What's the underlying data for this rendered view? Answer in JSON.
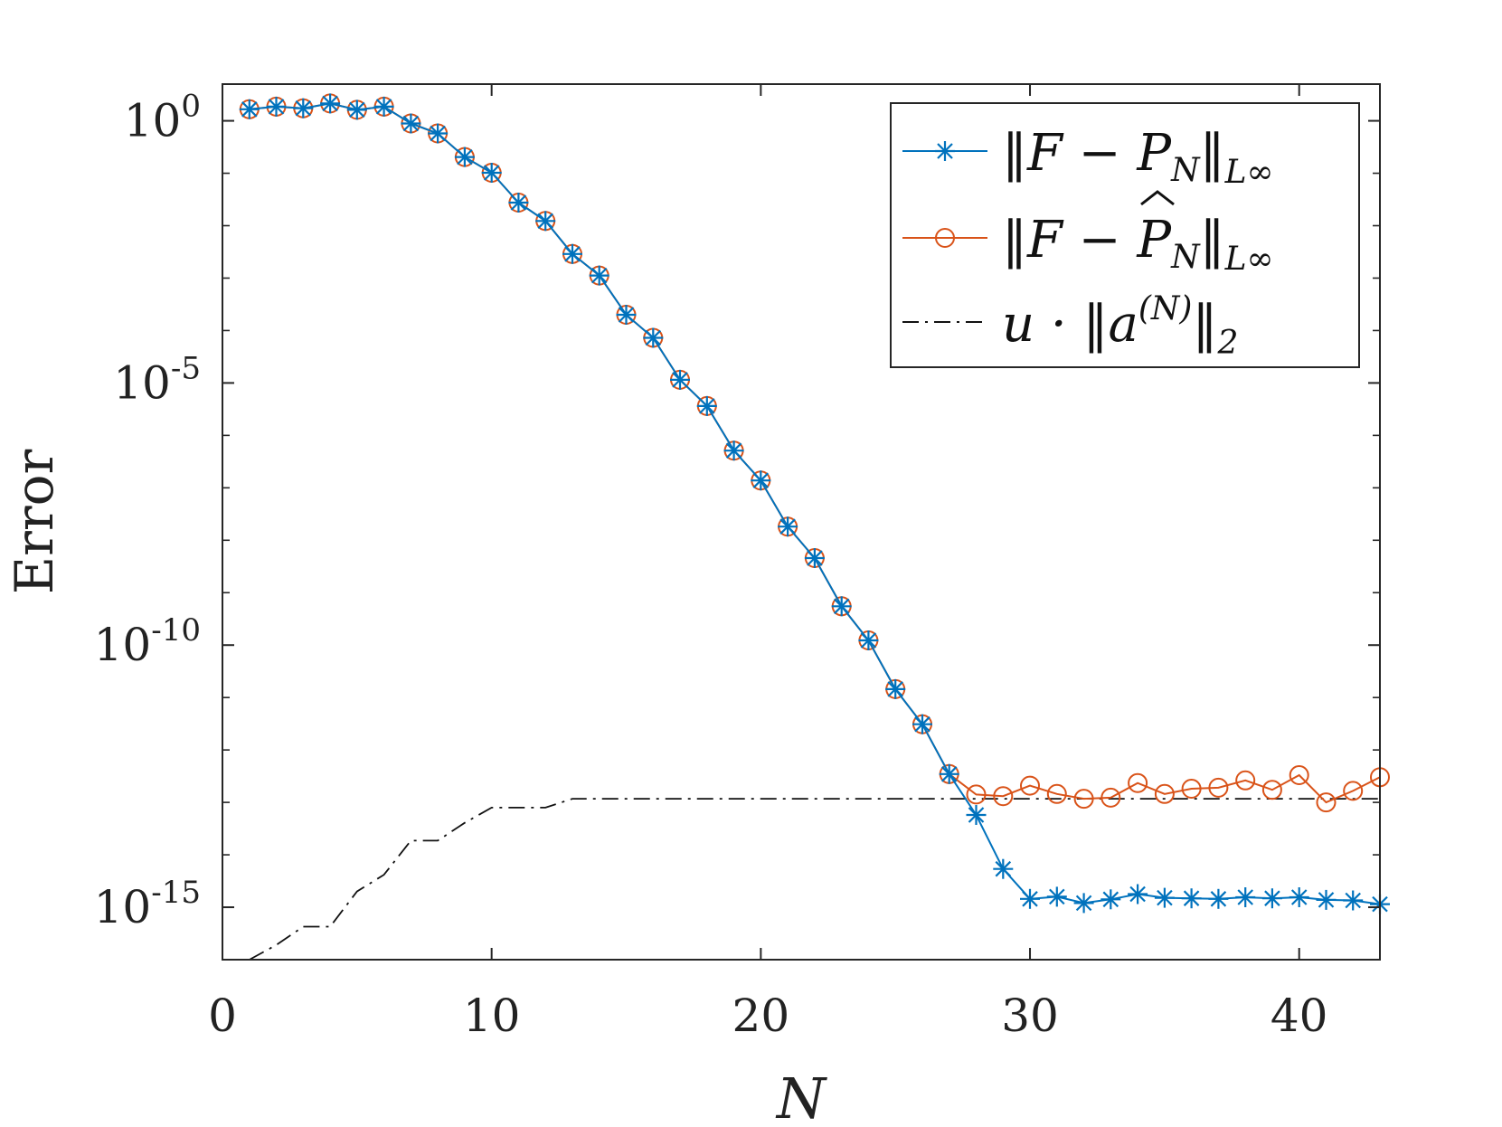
{
  "chart_data": {
    "type": "line",
    "title": "",
    "xlabel": "N",
    "ylabel": "Error",
    "xlim": [
      0,
      43
    ],
    "ylim_log10": [
      -16,
      0.7
    ],
    "yscale": "log",
    "x_ticks": [
      0,
      10,
      20,
      30,
      40
    ],
    "x_tick_labels": [
      "0",
      "10",
      "20",
      "30",
      "40"
    ],
    "y_ticks_log10": [
      0,
      -5,
      -10,
      -15
    ],
    "y_tick_labels": [
      {
        "base": "10",
        "exp": "0"
      },
      {
        "base": "10",
        "exp": "-5"
      },
      {
        "base": "10",
        "exp": "-10"
      },
      {
        "base": "10",
        "exp": "-15"
      }
    ],
    "legend_position": "top-right",
    "series": [
      {
        "name": "||F − P_N||_L∞",
        "legend_label": "‖F − P_N‖_{L∞}",
        "color": "#0072BD",
        "marker": "asterisk",
        "line": "solid",
        "x": [
          1,
          2,
          3,
          4,
          5,
          6,
          7,
          8,
          9,
          10,
          11,
          12,
          13,
          14,
          15,
          16,
          17,
          18,
          19,
          20,
          21,
          22,
          23,
          24,
          25,
          26,
          27,
          28,
          29,
          30,
          31,
          32,
          33,
          34,
          35,
          36,
          37,
          38,
          39,
          40,
          41,
          42,
          43
        ],
        "log10_y": [
          0.22,
          0.27,
          0.24,
          0.33,
          0.21,
          0.27,
          -0.05,
          -0.24,
          -0.69,
          -0.99,
          -1.56,
          -1.91,
          -2.54,
          -2.95,
          -3.7,
          -4.14,
          -4.94,
          -5.44,
          -6.29,
          -6.86,
          -7.74,
          -8.34,
          -9.26,
          -9.91,
          -10.84,
          -11.51,
          -12.46,
          -13.24,
          -14.27,
          -14.84,
          -14.8,
          -14.92,
          -14.85,
          -14.75,
          -14.82,
          -14.83,
          -14.84,
          -14.81,
          -14.83,
          -14.81,
          -14.86,
          -14.87,
          -14.94
        ]
      },
      {
        "name": "||F − P̂_N||_L∞",
        "legend_label": "‖F − P̂_N‖_{L∞}",
        "color": "#D95319",
        "marker": "circle",
        "line": "solid",
        "x": [
          1,
          2,
          3,
          4,
          5,
          6,
          7,
          8,
          9,
          10,
          11,
          12,
          13,
          14,
          15,
          16,
          17,
          18,
          19,
          20,
          21,
          22,
          23,
          24,
          25,
          26,
          27,
          28,
          29,
          30,
          31,
          32,
          33,
          34,
          35,
          36,
          37,
          38,
          39,
          40,
          41,
          42,
          43
        ],
        "log10_y": [
          0.22,
          0.27,
          0.24,
          0.33,
          0.21,
          0.27,
          -0.05,
          -0.24,
          -0.69,
          -0.99,
          -1.56,
          -1.91,
          -2.54,
          -2.95,
          -3.7,
          -4.14,
          -4.94,
          -5.44,
          -6.29,
          -6.86,
          -7.74,
          -8.34,
          -9.26,
          -9.91,
          -10.84,
          -11.51,
          -12.46,
          -12.85,
          -12.88,
          -12.68,
          -12.84,
          -12.93,
          -12.91,
          -12.63,
          -12.84,
          -12.74,
          -12.72,
          -12.58,
          -12.76,
          -12.48,
          -13.0,
          -12.78,
          -12.52
        ]
      },
      {
        "name": "u · ||a^(N)||_2",
        "legend_label": "u · ‖a^(N)‖_2",
        "color": "#111111",
        "marker": "none",
        "line": "dashdot",
        "x": [
          1,
          2,
          3,
          4,
          5,
          6,
          7,
          8,
          9,
          10,
          11,
          12,
          13,
          14,
          15,
          16,
          17,
          18,
          19,
          20,
          21,
          22,
          23,
          24,
          25,
          26,
          27,
          28,
          29,
          30,
          31,
          32,
          33,
          34,
          35,
          36,
          37,
          38,
          39,
          40,
          41,
          42,
          43
        ],
        "log10_y": [
          -16.0,
          -15.72,
          -15.37,
          -15.37,
          -14.7,
          -14.38,
          -13.73,
          -13.73,
          -13.39,
          -13.1,
          -13.1,
          -13.1,
          -12.93,
          -12.93,
          -12.93,
          -12.93,
          -12.93,
          -12.93,
          -12.93,
          -12.93,
          -12.93,
          -12.93,
          -12.93,
          -12.93,
          -12.93,
          -12.93,
          -12.93,
          -12.93,
          -12.93,
          -12.93,
          -12.93,
          -12.93,
          -12.93,
          -12.93,
          -12.93,
          -12.93,
          -12.93,
          -12.93,
          -12.93,
          -12.93,
          -12.93,
          -12.93,
          -12.93
        ]
      }
    ]
  }
}
